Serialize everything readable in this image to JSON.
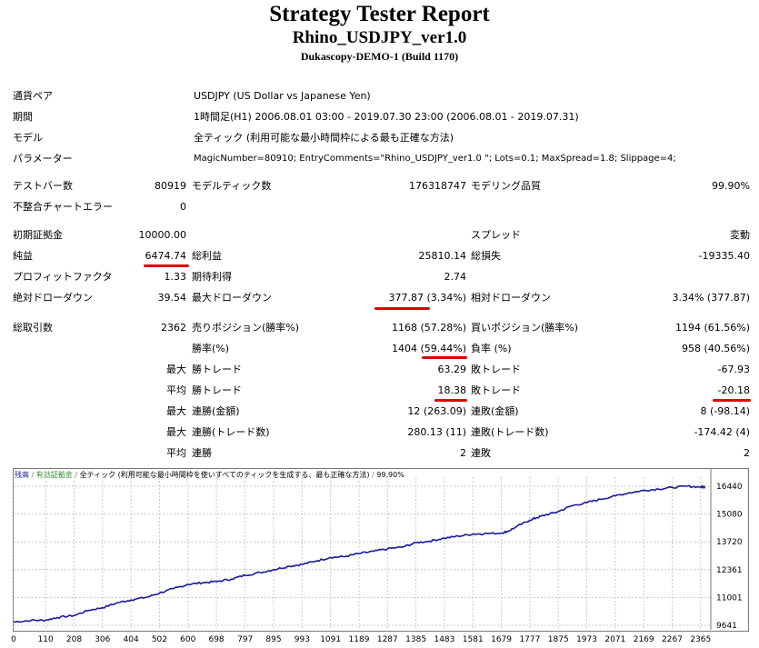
{
  "header": {
    "title": "Strategy Tester Report",
    "subtitle": "Rhino_USDJPY_ver1.0",
    "server": "Dukascopy-DEMO-1 (Build 1170)"
  },
  "info": {
    "symbol_label": "通貨ペア",
    "symbol_value": "USDJPY (US Dollar vs Japanese Yen)",
    "period_label": "期間",
    "period_value": "1時間足(H1) 2006.08.01 03:00 - 2019.07.30 23:00 (2006.08.01 - 2019.07.31)",
    "model_label": "モデル",
    "model_value": "全ティック (利用可能な最小時間枠による最も正確な方法)",
    "params_label": "パラメーター",
    "params_value": "MagicNumber=80910; EntryComments=\"Rhino_USDJPY_ver1.0 \"; Lots=0.1; MaxSpread=1.8; Slippage=4;"
  },
  "bars": {
    "testbars_label": "テストバー数",
    "testbars_value": "80919",
    "ticks_label": "モデルティック数",
    "ticks_value": "176318747",
    "quality_label": "モデリング品質",
    "quality_value": "99.90%",
    "mismatch_label": "不整合チャートエラー",
    "mismatch_value": "0"
  },
  "results": {
    "deposit_label": "初期証拠金",
    "deposit_value": "10000.00",
    "spread_label": "スプレッド",
    "spread_value": "変動",
    "net_label": "純益",
    "net_value": "6474.74",
    "gross_profit_label": "総利益",
    "gross_profit_value": "25810.14",
    "gross_loss_label": "総損失",
    "gross_loss_value": "-19335.40",
    "pf_label": "プロフィットファクタ",
    "pf_value": "1.33",
    "expected_label": "期待利得",
    "expected_value": "2.74",
    "abs_dd_label": "絶対ドローダウン",
    "abs_dd_value": "39.54",
    "max_dd_label": "最大ドローダウン",
    "max_dd_value": "377.87 (3.34%)",
    "rel_dd_label": "相対ドローダウン",
    "rel_dd_value": "3.34% (377.87)"
  },
  "trades": {
    "total_label": "総取引数",
    "total_value": "2362",
    "short_label": "売りポジション(勝率%)",
    "short_value": "1168 (57.28%)",
    "long_label": "買いポジション(勝率%)",
    "long_value": "1194 (61.56%)",
    "win_label": "勝率(%)",
    "win_value": "1404 (59.44%)",
    "loss_label": "負率 (%)",
    "loss_value": "958 (40.56%)",
    "max_prefix": "最大",
    "avg_prefix": "平均",
    "largest_win_label": "勝トレード",
    "largest_win_value": "63.29",
    "largest_loss_label": "敗トレード",
    "largest_loss_value": "-67.93",
    "avg_win_label": "勝トレード",
    "avg_win_value": "18.38",
    "avg_loss_label": "敗トレード",
    "avg_loss_value": "-20.18",
    "consec_wins_money_label": "連勝(金額)",
    "consec_wins_money_value": "12 (263.09)",
    "consec_losses_money_label": "連敗(金額)",
    "consec_losses_money_value": "8 (-98.14)",
    "consec_profit_label": "連勝(トレード数)",
    "consec_profit_value": "280.13 (11)",
    "consec_loss_label": "連敗(トレード数)",
    "consec_loss_value": "-174.42 (4)",
    "avg_consec_wins_label": "連勝",
    "avg_consec_wins_value": "2",
    "avg_consec_losses_label": "連敗",
    "avg_consec_losses_value": "2"
  },
  "colors": {
    "underline": "#e00000",
    "balance_line": "#1a1a9a",
    "legend_balance": "#1a1a9a",
    "legend_equity": "#2e8b2e"
  },
  "chart_data": {
    "type": "line",
    "legend": [
      {
        "text": "残高",
        "color": "#1a1a9a"
      },
      {
        "text": "有効証拠金",
        "color": "#2e8b2e"
      },
      {
        "text": "全ティック (利用可能な最小時間枠を使いすべてのティックを生成する、最も正確な方法)",
        "color": "#000000"
      },
      {
        "text": "99.90%",
        "color": "#000000"
      }
    ],
    "x_ticks": [
      "0",
      "110",
      "208",
      "306",
      "404",
      "502",
      "600",
      "698",
      "797",
      "895",
      "993",
      "1091",
      "1189",
      "1287",
      "1385",
      "1483",
      "1581",
      "1679",
      "1777",
      "1875",
      "1973",
      "2071",
      "2169",
      "2267",
      "2365"
    ],
    "y_ticks": [
      "16440",
      "15080",
      "13720",
      "12361",
      "11001",
      "9641"
    ],
    "ylim": [
      9641,
      16440
    ],
    "xlim": [
      0,
      2400
    ],
    "series": [
      {
        "x": [
          0,
          60,
          110,
          150,
          208,
          260,
          306,
          360,
          404,
          460,
          502,
          550,
          600,
          650,
          698,
          750,
          797,
          850,
          895,
          950,
          993,
          1040,
          1091,
          1140,
          1189,
          1240,
          1287,
          1340,
          1385,
          1430,
          1483,
          1530,
          1581,
          1620,
          1679,
          1700,
          1730,
          1777,
          1800,
          1830,
          1875,
          1920,
          1973,
          2020,
          2071,
          2120,
          2169,
          2220,
          2267,
          2320,
          2365,
          2380
        ],
        "y": [
          9800,
          9880,
          9890,
          10020,
          10120,
          10380,
          10500,
          10750,
          10880,
          11020,
          11220,
          11430,
          11640,
          11720,
          11780,
          11900,
          12090,
          12220,
          12360,
          12530,
          12620,
          12780,
          12960,
          13000,
          13150,
          13260,
          13380,
          13470,
          13680,
          13750,
          13900,
          14000,
          14100,
          14120,
          14150,
          14230,
          14450,
          14780,
          14900,
          15030,
          15200,
          15480,
          15640,
          15800,
          15970,
          16120,
          16230,
          16300,
          16380,
          16440,
          16400,
          16420
        ]
      }
    ]
  }
}
